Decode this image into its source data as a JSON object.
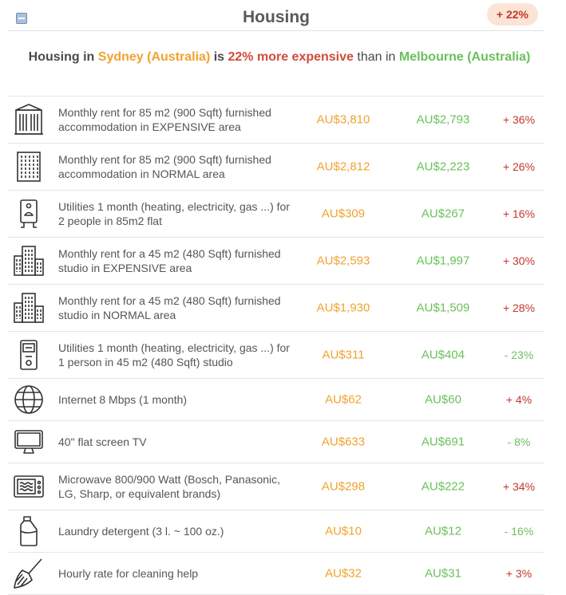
{
  "header": {
    "title": "Housing",
    "badge": "+ 22%"
  },
  "summary": {
    "prefix": "Housing in ",
    "city_a": "Sydney (Australia)",
    "mid": " is ",
    "diff": "22% more expensive",
    "than": " than in ",
    "city_b": "Melbourne (Australia)"
  },
  "colors": {
    "city_a": "#f0a32f",
    "city_b": "#6bc05c",
    "more_expensive": "#cf4b3c",
    "badge_bg": "#fbe3d6"
  },
  "items": [
    {
      "icon": "expensive-building-icon",
      "label": "Monthly rent for 85 m2 (900 Sqft) furnished accommodation in EXPENSIVE area",
      "a": "AU$3,810",
      "b": "AU$2,793",
      "pct": "+ 36%",
      "dir": "up"
    },
    {
      "icon": "building-icon",
      "label": "Monthly rent for 85 m2 (900 Sqft) furnished accommodation in NORMAL area",
      "a": "AU$2,812",
      "b": "AU$2,223",
      "pct": "+ 26%",
      "dir": "up"
    },
    {
      "icon": "utilities-meter-icon",
      "label": "Utilities 1 month (heating, electricity, gas ...) for 2 people in 85m2 flat",
      "a": "AU$309",
      "b": "AU$267",
      "pct": "+ 16%",
      "dir": "up"
    },
    {
      "icon": "city-buildings-icon",
      "label": "Monthly rent for a 45 m2 (480 Sqft) furnished studio in EXPENSIVE area",
      "a": "AU$2,593",
      "b": "AU$1,997",
      "pct": "+ 30%",
      "dir": "up"
    },
    {
      "icon": "city-buildings-icon",
      "label": "Monthly rent for a 45 m2 (480 Sqft) furnished studio in NORMAL area",
      "a": "AU$1,930",
      "b": "AU$1,509",
      "pct": "+ 28%",
      "dir": "up"
    },
    {
      "icon": "heater-icon",
      "label": "Utilities 1 month (heating, electricity, gas ...) for 1 person in 45 m2 (480 Sqft) studio",
      "a": "AU$311",
      "b": "AU$404",
      "pct": "- 23%",
      "dir": "down"
    },
    {
      "icon": "globe-icon",
      "label": "Internet 8 Mbps (1 month)",
      "a": "AU$62",
      "b": "AU$60",
      "pct": "+ 4%",
      "dir": "up"
    },
    {
      "icon": "tv-icon",
      "label": "40\" flat screen TV",
      "a": "AU$633",
      "b": "AU$691",
      "pct": "- 8%",
      "dir": "down"
    },
    {
      "icon": "microwave-icon",
      "label": "Microwave 800/900 Watt (Bosch, Panasonic, LG, Sharp, or equivalent brands)",
      "a": "AU$298",
      "b": "AU$222",
      "pct": "+ 34%",
      "dir": "up"
    },
    {
      "icon": "detergent-bottle-icon",
      "label": "Laundry detergent (3 l. ~ 100 oz.)",
      "a": "AU$10",
      "b": "AU$12",
      "pct": "- 16%",
      "dir": "down"
    },
    {
      "icon": "broom-icon",
      "label": "Hourly rate for cleaning help",
      "a": "AU$32",
      "b": "AU$31",
      "pct": "+ 3%",
      "dir": "up"
    }
  ]
}
